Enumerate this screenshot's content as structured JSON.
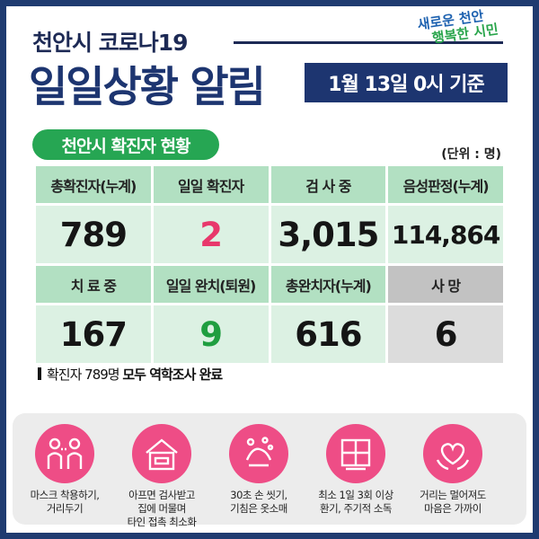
{
  "header": {
    "sub_title": "천안시 코로나19",
    "main_title": "일일상황 알림",
    "date": "1월 13일 0시 기준",
    "slogan_line1": "새로운 천안",
    "slogan_line2": "행복한 시민"
  },
  "section": {
    "title": "천안시 확진자 현황",
    "unit": "(단위 : 명)"
  },
  "stats": {
    "row1_headers": [
      "총확진자(누계)",
      "일일 확진자",
      "검 사 중",
      "음성판정(누계)"
    ],
    "row1_values": [
      "789",
      "2",
      "3,015",
      "114,864"
    ],
    "row2_headers": [
      "치 료 중",
      "일일 완치(퇴원)",
      "총완치자(누계)",
      "사 망"
    ],
    "row2_values": [
      "167",
      "9",
      "616",
      "6"
    ]
  },
  "colors": {
    "navy": "#1d3570",
    "green": "#26a653",
    "pink": "#ee4d86",
    "red_value": "#e8376b",
    "green_value": "#1f9e40"
  },
  "note": {
    "prefix": "확진자 789명 ",
    "bold": "모두 역학조사 완료"
  },
  "tips": [
    {
      "icon": "mask-distance-icon",
      "line1": "마스크 착용하기,",
      "line2": "거리두기"
    },
    {
      "icon": "stay-home-icon",
      "line1": "아프면 검사받고",
      "line2": "집에 머물며",
      "line3": "타인 접촉 최소화"
    },
    {
      "icon": "hand-wash-icon",
      "line1": "30초 손 씻기,",
      "line2": "기침은 옷소매"
    },
    {
      "icon": "ventilation-icon",
      "line1": "최소 1일 3회 이상",
      "line2": "환기, 주기적 소독"
    },
    {
      "icon": "heart-hands-icon",
      "line1": "거리는 멀어져도",
      "line2": "마음은 가까이"
    }
  ]
}
